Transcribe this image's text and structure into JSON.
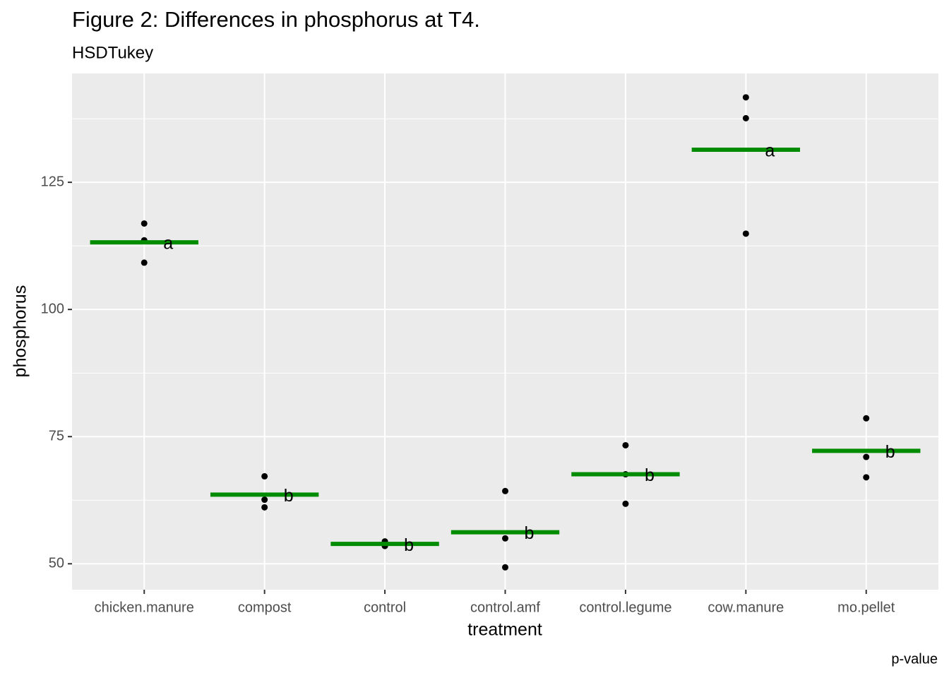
{
  "chart_data": {
    "type": "strip",
    "title": "Figure 2: Differences in phosphorus at T4.",
    "subtitle": "HSDTukey",
    "caption": "p-value",
    "x_label": "treatment",
    "y_label": "phosphorus",
    "categories": [
      "chicken.manure",
      "compost",
      "control",
      "control.amf",
      "control.legume",
      "cow.manure",
      "mo.pellet"
    ],
    "points": [
      [
        116.9,
        113.6,
        109.2
      ],
      [
        67.2,
        62.6,
        61.1
      ],
      [
        54.4,
        53.9,
        53.5
      ],
      [
        64.3,
        55.0,
        49.3
      ],
      [
        73.3,
        67.6,
        61.8
      ],
      [
        141.7,
        137.6,
        114.9
      ],
      [
        78.6,
        71.0,
        67.0
      ]
    ],
    "means": [
      113.2,
      63.6,
      53.9,
      56.2,
      67.6,
      131.4,
      72.2
    ],
    "letters": [
      "a",
      "b",
      "b",
      "b",
      "b",
      "a",
      "b"
    ],
    "point_color": "#000000",
    "mean_color": "#008b00",
    "ylim": [
      44.9,
      146.4
    ],
    "yticks": [
      50,
      75,
      100,
      125
    ],
    "grid": true
  }
}
